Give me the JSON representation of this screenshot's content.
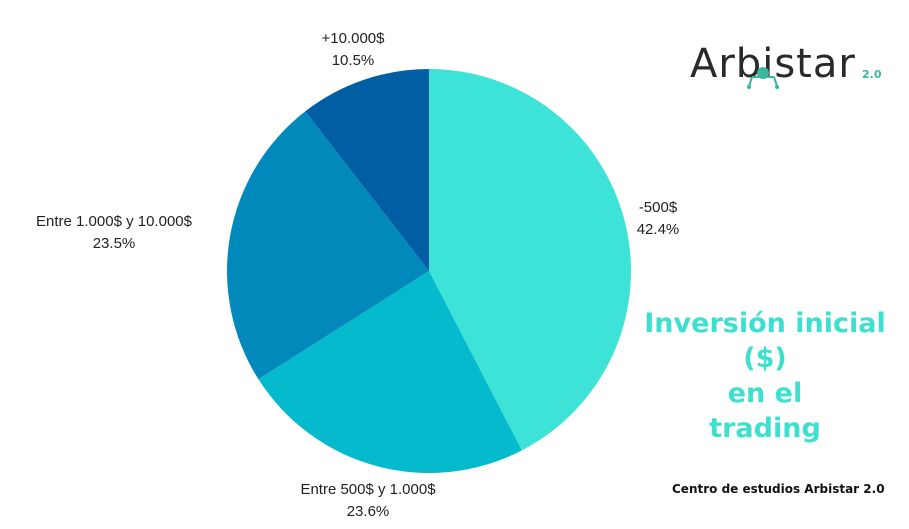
{
  "chart_data": {
    "type": "pie",
    "title": "Inversión inicial ($) en el trading",
    "slices": [
      {
        "label": "-500$",
        "value": 42.4,
        "percent_label": "42.4%",
        "color": "#3de3d6"
      },
      {
        "label": "Entre 500$ y 1.000$",
        "value": 23.6,
        "percent_label": "23.6%",
        "color": "#04bacc"
      },
      {
        "label": "Entre 1.000$ y 10.000$",
        "value": 23.5,
        "percent_label": "23.5%",
        "color": "#0189bc"
      },
      {
        "label": "+10.000$",
        "value": 10.5,
        "percent_label": "10.5%",
        "color": "#015ea3"
      }
    ],
    "start": "12 o'clock",
    "direction": "clockwise",
    "legend": "none"
  },
  "title_lines": [
    "Inversión inicial ($)",
    "en el",
    "trading"
  ],
  "logo": {
    "text": "Arbistar",
    "version": "2.0",
    "accent": "#3ab79c"
  },
  "source_note": "Centro de estudios Arbistar 2.0",
  "colors": {
    "title": "#3de0cf",
    "label": "#222222"
  }
}
